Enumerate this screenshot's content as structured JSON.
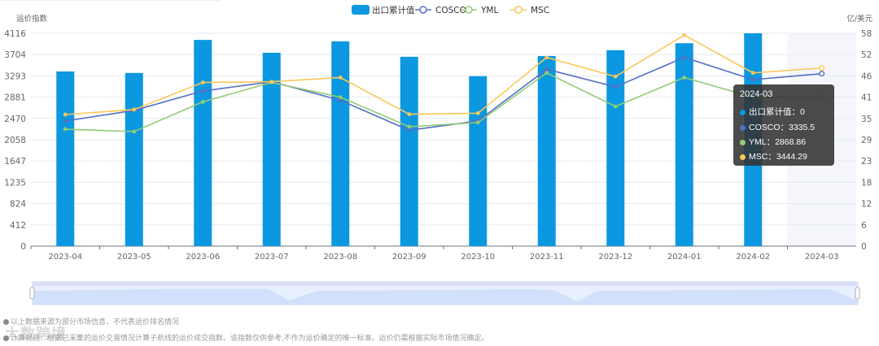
{
  "chart_data": {
    "type": "bar+line",
    "title": "",
    "categories": [
      "2023-04",
      "2023-05",
      "2023-06",
      "2023-07",
      "2023-08",
      "2023-09",
      "2023-10",
      "2023-11",
      "2023-12",
      "2024-01",
      "2024-02",
      "2024-03"
    ],
    "left_axis": {
      "label": "运价指数",
      "ticks": [
        0,
        412,
        824,
        1235,
        1647,
        2058,
        2470,
        2881,
        3293,
        3704,
        4116
      ],
      "range": [
        0,
        4116
      ]
    },
    "right_axis": {
      "label": "亿/美元",
      "ticks": [
        0,
        6,
        12,
        18,
        23,
        29,
        35,
        41,
        46,
        52,
        58
      ],
      "range": [
        0,
        58
      ]
    },
    "series": [
      {
        "name": "出口累计值",
        "type": "bar",
        "axis": "right",
        "color": "#0b98e0",
        "values": [
          47.6,
          47.2,
          56.2,
          52.7,
          55.8,
          51.6,
          46.3,
          51.8,
          53.4,
          55.3,
          58.0,
          0
        ]
      },
      {
        "name": "COSCO",
        "type": "line",
        "axis": "left",
        "color": "#5470c6",
        "values": [
          2419,
          2625,
          3000,
          3180,
          2820,
          2240,
          2420,
          3420,
          3080,
          3650,
          3220,
          3335.5
        ]
      },
      {
        "name": "YML",
        "type": "line",
        "axis": "left",
        "color": "#91cc75",
        "values": [
          2262,
          2215,
          2790,
          3165,
          2880,
          2310,
          2390,
          3350,
          2700,
          3260,
          2880,
          2868.86
        ]
      },
      {
        "name": "MSC",
        "type": "line",
        "axis": "left",
        "color": "#fac858",
        "values": [
          2545,
          2640,
          3165,
          3180,
          3260,
          2550,
          2570,
          3650,
          3280,
          4080,
          3350,
          3444.29
        ]
      }
    ],
    "legend_position": "top",
    "grid": true
  },
  "legend": [
    {
      "label": "出口累计值"
    },
    {
      "label": "COSCO"
    },
    {
      "label": "YML"
    },
    {
      "label": "MSC"
    }
  ],
  "axes": {
    "left_label": "运价指数",
    "right_label": "亿/美元",
    "left_ticks": [
      "4116",
      "3704",
      "3293",
      "2881",
      "2470",
      "2058",
      "1647",
      "1235",
      "824",
      "412",
      "0"
    ],
    "right_ticks": [
      "58",
      "52",
      "46",
      "41",
      "35",
      "29",
      "23",
      "18",
      "12",
      "6",
      "0"
    ],
    "x_ticks": [
      "2023-04",
      "2023-05",
      "2023-06",
      "2023-07",
      "2023-08",
      "2023-09",
      "2023-10",
      "2023-11",
      "2023-12",
      "2024-01",
      "2024-02",
      "2024-03"
    ]
  },
  "tooltip": {
    "title": "2024-03",
    "rows": [
      {
        "label": "出口累计值：0",
        "color": "#0b98e0"
      },
      {
        "label": "COSCO：3335.5",
        "color": "#5470c6"
      },
      {
        "label": "YML：2868.86",
        "color": "#91cc75"
      },
      {
        "label": "MSC：3444.29",
        "color": "#fac858"
      }
    ]
  },
  "notes": [
    "以上数据来源为部分市场信息，不代表运价排名情况",
    "计算规则：根据已采集的运价交易情况计算子航线的运价成交指数。该指数仅供参考,不作为运价确定的唯一标准。运价仍需根据实际市场情况确定。"
  ],
  "watermark": "大数跨境"
}
